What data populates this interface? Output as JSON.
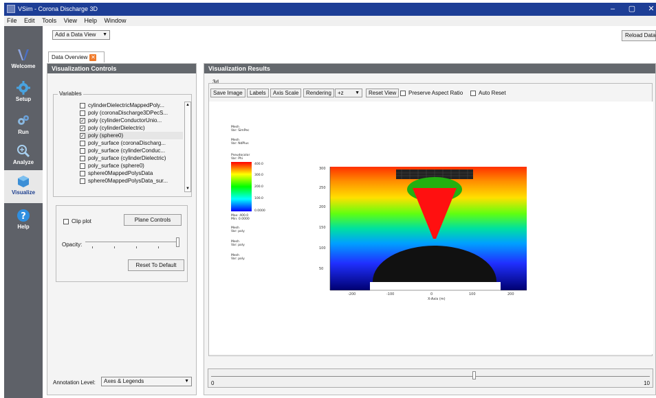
{
  "window": {
    "title": "VSim - Corona Discharge 3D",
    "minimize": "–",
    "maximize": "▢",
    "close": "✕"
  },
  "menu": [
    "File",
    "Edit",
    "Tools",
    "View",
    "Help",
    "Window"
  ],
  "nav": [
    {
      "label": "Welcome",
      "icon": "vsim-logo-icon"
    },
    {
      "label": "Setup",
      "icon": "gear-icon"
    },
    {
      "label": "Run",
      "icon": "gears-icon"
    },
    {
      "label": "Analyze",
      "icon": "magnifier-icon"
    },
    {
      "label": "Visualize",
      "icon": "cube-icon"
    },
    {
      "label": "Help",
      "icon": "question-icon"
    }
  ],
  "toolbar": {
    "data_view_select": "Add a Data View",
    "reload_label": "Reload Data"
  },
  "tab": {
    "label": "Data Overview",
    "close": "✕"
  },
  "left_panel": {
    "header": "Visualization Controls",
    "variables_title": "Variables",
    "variables": [
      {
        "label": "cylinderDielectricMappedPoly...",
        "checked": false
      },
      {
        "label": "poly (coronaDischarge3DPecS...",
        "checked": false
      },
      {
        "label": "poly (cylinderConductorUnio...",
        "checked": true
      },
      {
        "label": "poly (cylinderDielectric)",
        "checked": true
      },
      {
        "label": "poly (sphere0)",
        "checked": true
      },
      {
        "label": "poly_surface (coronaDischarg...",
        "checked": false
      },
      {
        "label": "poly_surface (cylinderConduc...",
        "checked": false
      },
      {
        "label": "poly_surface (cylinderDielectric)",
        "checked": false
      },
      {
        "label": "poly_surface (sphere0)",
        "checked": false
      },
      {
        "label": "sphere0MappedPolysData",
        "checked": false
      },
      {
        "label": "sphere0MappedPolysData_sur...",
        "checked": false
      }
    ],
    "clip_plot_label": "Clip plot",
    "plane_controls_label": "Plane Controls",
    "opacity_label": "Opacity:",
    "opacity_value": 1.0,
    "reset_default_label": "Reset To Default",
    "annotation_label": "Annotation Level:",
    "annotation_value": "Axes & Legends"
  },
  "right_panel": {
    "header": "Visualization Results",
    "view_title": "3d",
    "buttons": {
      "save_image": "Save Image",
      "labels": "Labels",
      "axis_scale": "Axis Scale",
      "rendering": "Rendering",
      "axis_dir": "+z",
      "reset_view": "Reset View",
      "preserve_aspect": "Preserve Aspect Ratio",
      "auto_reset": "Auto Reset"
    },
    "legend": {
      "mesh1": [
        "Mesh",
        "Var: SimPec"
      ],
      "mesh2": [
        "Mesh",
        "Var: NdPlus"
      ],
      "pseudocolor": [
        "Pseudocolor",
        "Var: Phi"
      ],
      "ticks": [
        "400.0",
        "300.0",
        "200.0",
        "100.0",
        "0.0000"
      ],
      "minmax": [
        "Max: 400.0",
        "Min: 0.0000"
      ],
      "mesh3": [
        "Mesh",
        "Var: poly"
      ],
      "mesh4": [
        "Mesh",
        "Var: poly"
      ],
      "mesh5": [
        "Mesh",
        "Var: poly"
      ]
    },
    "axis_ticks_y": [
      "300",
      "250",
      "200",
      "150",
      "100",
      "50"
    ],
    "axis_ticks_x": [
      "-200",
      "-100",
      "0",
      "100",
      "200"
    ],
    "axis_x_label": "X-Axis (m)"
  },
  "time_slider": {
    "min": "0",
    "max": "10",
    "value_fraction": 0.6
  }
}
